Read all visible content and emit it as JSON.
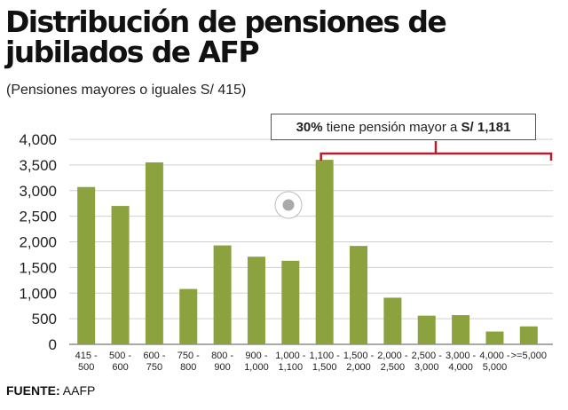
{
  "header": {
    "title": "Distribución de pensiones de jubilados de AFP",
    "subtitle": "(Pensiones mayores o iguales S/ 415)"
  },
  "callout": {
    "pct": "30%",
    "text": " tiene pensión mayor a ",
    "amount": "S/ 1,181"
  },
  "footer": {
    "label": "FUENTE:",
    "source": " AAFP"
  },
  "colors": {
    "bar": "#8ba23e",
    "bracket": "#b41f2e",
    "grid": "#d0d0d0",
    "axis": "#555555"
  },
  "chart_data": {
    "type": "bar",
    "title": "Distribución de pensiones de jubilados de AFP",
    "subtitle": "(Pensiones mayores o iguales S/ 415)",
    "categories": [
      [
        "415 -",
        "500"
      ],
      [
        "500 -",
        "600"
      ],
      [
        "600 -",
        "750"
      ],
      [
        "750 -",
        "800"
      ],
      [
        "800 -",
        "900"
      ],
      [
        "900 -",
        "1,000"
      ],
      [
        "1,000 -",
        "1,100"
      ],
      [
        "1,100 -",
        "1,500"
      ],
      [
        "1,500 -",
        "2,000"
      ],
      [
        "2,000 -",
        "2,500"
      ],
      [
        "2,500 -",
        "3,000"
      ],
      [
        "3,000 -",
        "4,000"
      ],
      [
        "4,000 -",
        "5,000"
      ],
      [
        ">=5,000"
      ]
    ],
    "values": [
      3070,
      2700,
      3550,
      1080,
      1930,
      1710,
      1630,
      3600,
      1920,
      910,
      560,
      570,
      250,
      350
    ],
    "yticks": [
      "0",
      "500",
      "1,000",
      "1,500",
      "2,000",
      "2,500",
      "3,000",
      "3,500",
      "4,000"
    ],
    "ylim": [
      0,
      4000
    ],
    "ytick_step": 500,
    "xlabel": "",
    "ylabel": "",
    "grid": true,
    "bracket_range": [
      "1,100 - 1,500",
      ">=5,000"
    ]
  }
}
